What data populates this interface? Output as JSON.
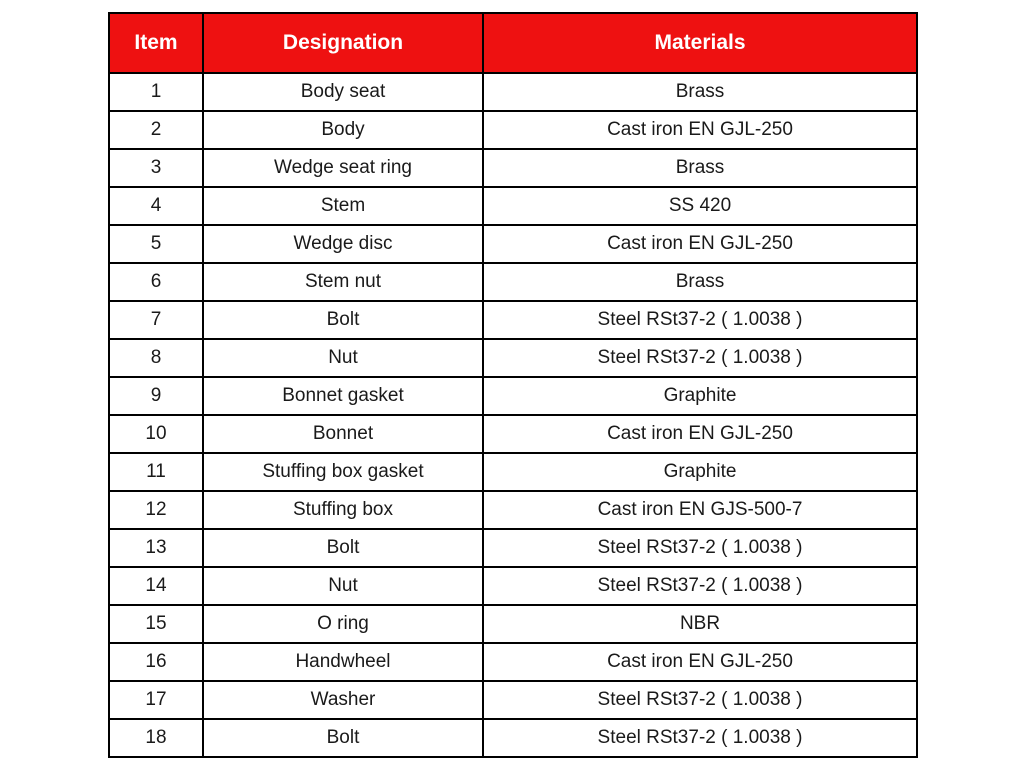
{
  "page": {
    "background_color": "#ffffff"
  },
  "table": {
    "border_color": "#000000",
    "header": {
      "background_color": "#ee1111",
      "text_color": "#ffffff",
      "columns": [
        "Item",
        "Designation",
        "Materials"
      ]
    },
    "rows": [
      {
        "item": "1",
        "designation": "Body seat",
        "material": "Brass"
      },
      {
        "item": "2",
        "designation": "Body",
        "material": "Cast iron EN GJL-250"
      },
      {
        "item": "3",
        "designation": "Wedge seat ring",
        "material": "Brass"
      },
      {
        "item": "4",
        "designation": "Stem",
        "material": "SS 420"
      },
      {
        "item": "5",
        "designation": "Wedge disc",
        "material": "Cast iron EN GJL-250"
      },
      {
        "item": "6",
        "designation": "Stem nut",
        "material": "Brass"
      },
      {
        "item": "7",
        "designation": "Bolt",
        "material": "Steel RSt37-2 ( 1.0038 )"
      },
      {
        "item": "8",
        "designation": "Nut",
        "material": "Steel RSt37-2 ( 1.0038 )"
      },
      {
        "item": "9",
        "designation": "Bonnet gasket",
        "material": "Graphite"
      },
      {
        "item": "10",
        "designation": "Bonnet",
        "material": "Cast iron EN GJL-250"
      },
      {
        "item": "11",
        "designation": "Stuffing box gasket",
        "material": "Graphite"
      },
      {
        "item": "12",
        "designation": "Stuffing box",
        "material": "Cast iron EN GJS-500-7"
      },
      {
        "item": "13",
        "designation": "Bolt",
        "material": "Steel RSt37-2 ( 1.0038 )"
      },
      {
        "item": "14",
        "designation": "Nut",
        "material": "Steel RSt37-2 ( 1.0038 )"
      },
      {
        "item": "15",
        "designation": "O ring",
        "material": "NBR"
      },
      {
        "item": "16",
        "designation": "Handwheel",
        "material": "Cast iron EN GJL-250"
      },
      {
        "item": "17",
        "designation": "Washer",
        "material": "Steel RSt37-2 ( 1.0038 )"
      },
      {
        "item": "18",
        "designation": "Bolt",
        "material": "Steel RSt37-2 ( 1.0038 )"
      }
    ]
  }
}
